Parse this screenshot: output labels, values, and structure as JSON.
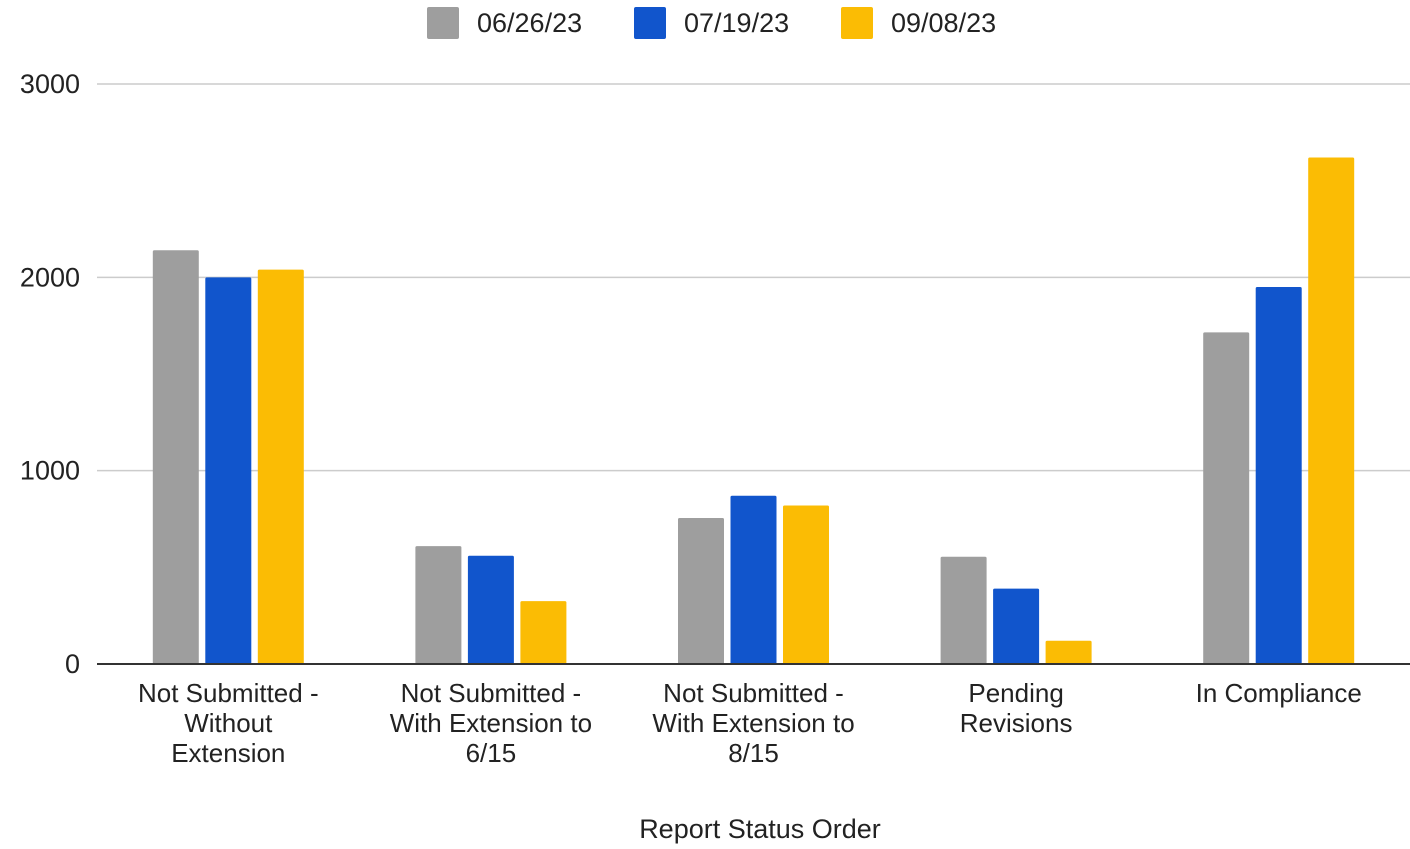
{
  "chart_data": {
    "type": "bar",
    "title": "",
    "xlabel": "Report Status Order",
    "ylabel": "",
    "ylim": [
      0,
      3000
    ],
    "yticks": [
      0,
      1000,
      2000,
      3000
    ],
    "grid": true,
    "legend_position": "top",
    "categories": [
      [
        "Not Submitted -",
        "Without",
        "Extension"
      ],
      [
        "Not Submitted -",
        "With Extension to",
        "6/15"
      ],
      [
        "Not Submitted -",
        "With Extension to",
        "8/15"
      ],
      [
        "Pending",
        "Revisions"
      ],
      [
        "In Compliance"
      ]
    ],
    "series": [
      {
        "name": "06/26/23",
        "color": "#9e9e9e",
        "values": [
          2140,
          610,
          755,
          555,
          1715
        ]
      },
      {
        "name": "07/19/23",
        "color": "#1155cc",
        "values": [
          2000,
          560,
          870,
          390,
          1950
        ]
      },
      {
        "name": "09/08/23",
        "color": "#fbbc04",
        "values": [
          2040,
          325,
          820,
          120,
          2620
        ]
      }
    ]
  }
}
